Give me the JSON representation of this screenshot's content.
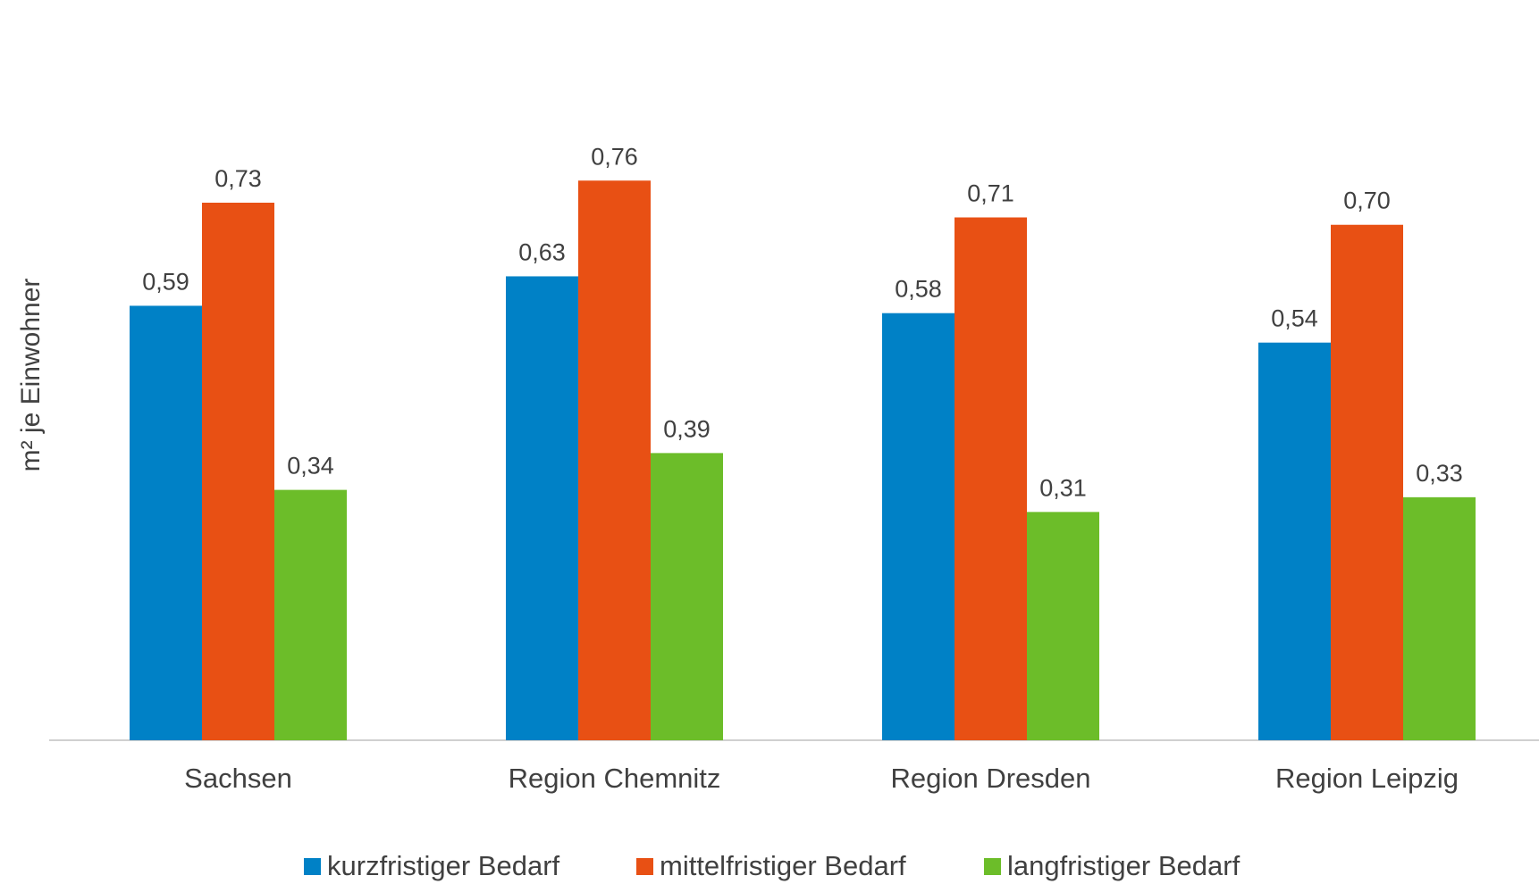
{
  "chart_data": {
    "type": "bar",
    "title": "",
    "xlabel": "",
    "ylabel": "m² je Einwohner",
    "ylim": [
      0,
      0.8
    ],
    "grid": false,
    "legend_position": "bottom",
    "categories": [
      "Sachsen",
      "Region Chemnitz",
      "Region Dresden",
      "Region Leipzig"
    ],
    "series": [
      {
        "name": "kurzfristiger Bedarf",
        "color": "#0081c6",
        "values": [
          0.59,
          0.63,
          0.58,
          0.54
        ],
        "labels": [
          "0,59",
          "0,63",
          "0,58",
          "0,54"
        ]
      },
      {
        "name": "mittelfristiger Bedarf",
        "color": "#e85014",
        "values": [
          0.73,
          0.76,
          0.71,
          0.7
        ],
        "labels": [
          "0,73",
          "0,76",
          "0,71",
          "0,70"
        ]
      },
      {
        "name": "langfristiger Bedarf",
        "color": "#6cbd29",
        "values": [
          0.34,
          0.39,
          0.31,
          0.33
        ],
        "labels": [
          "0,34",
          "0,39",
          "0,31",
          "0,33"
        ]
      }
    ]
  }
}
